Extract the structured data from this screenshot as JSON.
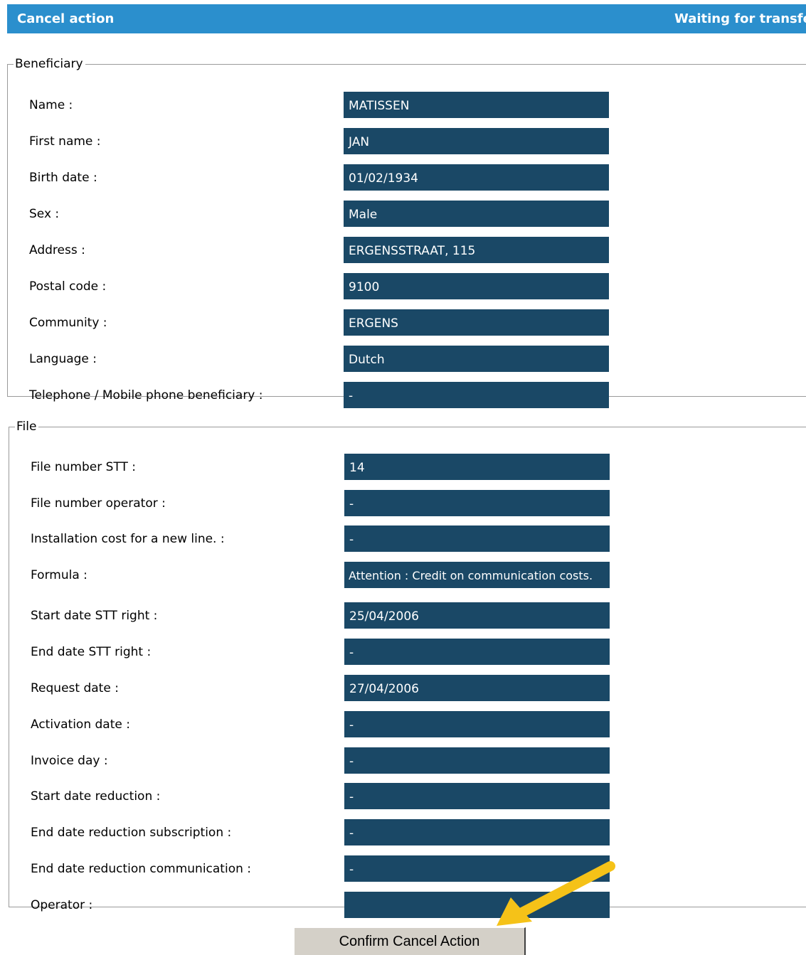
{
  "header": {
    "title": "Cancel action",
    "status": "Waiting for transfer"
  },
  "beneficiary": {
    "legend": "Beneficiary",
    "rows": [
      {
        "label": "Name :",
        "value": "MATISSEN"
      },
      {
        "label": "First name :",
        "value": "JAN"
      },
      {
        "label": "Birth date :",
        "value": "01/02/1934"
      },
      {
        "label": "Sex :",
        "value": "Male"
      },
      {
        "label": "Address :",
        "value": "ERGENSSTRAAT, 115"
      },
      {
        "label": "Postal code :",
        "value": "9100"
      },
      {
        "label": "Community :",
        "value": "ERGENS"
      },
      {
        "label": "Language :",
        "value": "Dutch"
      },
      {
        "label": "Telephone / Mobile phone beneficiary :",
        "value": "-"
      }
    ]
  },
  "file": {
    "legend": "File",
    "rows": [
      {
        "label": "File number STT :",
        "value": "14"
      },
      {
        "label": "File number operator :",
        "value": "-"
      },
      {
        "label": "Installation cost for a new line. :",
        "value": "-"
      },
      {
        "label": "Formula :",
        "value": "Attention : Credit on communication costs."
      },
      {
        "label": "Start date STT right :",
        "value": "25/04/2006"
      },
      {
        "label": "End date STT right :",
        "value": "-"
      },
      {
        "label": "Request date :",
        "value": "27/04/2006"
      },
      {
        "label": "Activation date :",
        "value": "-"
      },
      {
        "label": "Invoice day :",
        "value": "-"
      },
      {
        "label": "Start date reduction :",
        "value": "-"
      },
      {
        "label": "End date reduction subscription :",
        "value": "-"
      },
      {
        "label": "End date reduction communication :",
        "value": "-"
      },
      {
        "label": "Operator :",
        "value": ""
      }
    ]
  },
  "actions": {
    "confirm_label": "Confirm Cancel Action"
  },
  "colors": {
    "header_bg": "#2b8fcd",
    "value_bg": "#1a4866",
    "arrow": "#f5c218"
  },
  "icons": {
    "pointer": "arrow-pointer-icon"
  }
}
